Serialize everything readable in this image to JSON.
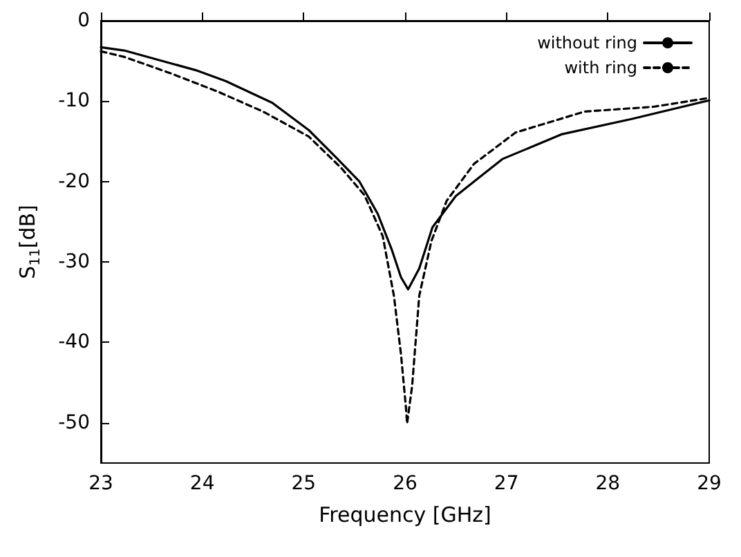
{
  "chart_data": {
    "type": "line",
    "xlabel": "Frequency [GHz]",
    "ylabel": "S$_{11}$[dB]",
    "xlim": [
      23,
      29
    ],
    "xticks": [
      23,
      24,
      25,
      26,
      27,
      28,
      29
    ],
    "ylim": [
      -55,
      0
    ],
    "yticks": [
      -50,
      -40,
      -30,
      -20,
      -10,
      0
    ],
    "grid": false,
    "legend": "top right",
    "marker": "none",
    "series": [
      {
        "name": "without ring",
        "color": "#000000",
        "line_style": "solid",
        "x": [
          23,
          23.23,
          23.95,
          24.23,
          24.69,
          25.05,
          25.32,
          25.55,
          25.73,
          25.87,
          25.96,
          26.03,
          26.14,
          26.27,
          26.5,
          26.96,
          27.55,
          28.24,
          29
        ],
        "values": [
          -3.3,
          -3.7,
          -6.2,
          -7.5,
          -10.2,
          -13.6,
          -17.0,
          -20.0,
          -24.0,
          -28.5,
          -31.9,
          -33.4,
          -30.8,
          -25.7,
          -21.8,
          -17.2,
          -14.1,
          -12.2,
          -9.9
        ]
      },
      {
        "name": "with ring",
        "color": "#000000",
        "line_style": "dashed",
        "x": [
          23,
          23.23,
          23.68,
          24.15,
          24.6,
          25.05,
          25.37,
          25.6,
          25.78,
          25.89,
          25.96,
          26.01,
          26.02,
          26.07,
          26.14,
          26.26,
          26.41,
          26.68,
          27.09,
          27.77,
          28.45,
          29
        ],
        "values": [
          -3.8,
          -4.5,
          -6.5,
          -8.8,
          -11.3,
          -14.4,
          -18.3,
          -21.7,
          -26.8,
          -34.2,
          -41.5,
          -48.3,
          -50.1,
          -45.4,
          -34.2,
          -27.4,
          -22.4,
          -17.8,
          -13.9,
          -11.3,
          -10.7,
          -9.6
        ]
      }
    ]
  }
}
